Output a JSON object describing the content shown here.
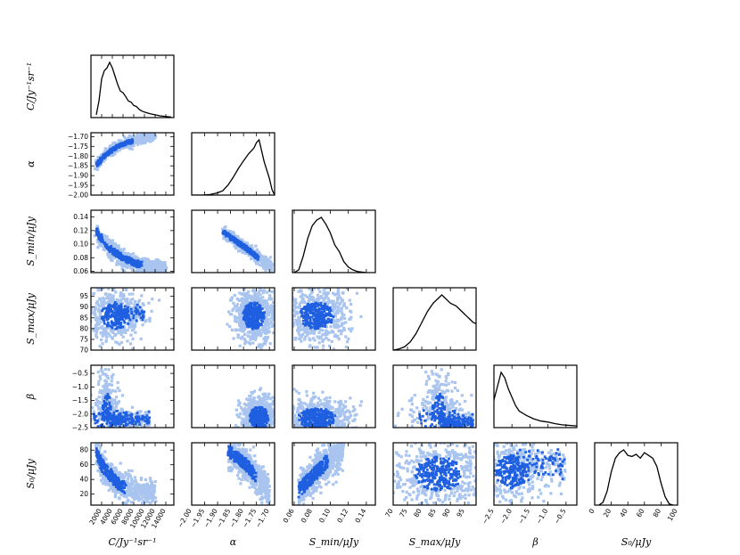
{
  "chart_data": {
    "type": "corner",
    "colors": {
      "inner": "#1f5fe0",
      "outer": "#a8c4ef",
      "line": "#000000",
      "frame": "#000000"
    },
    "params": [
      {
        "id": "C",
        "label": "C/Jy⁻¹sr⁻¹",
        "ylabel": "C/Jy⁻¹sr⁻¹",
        "range": [
          0,
          15500
        ],
        "ticks": [
          2000,
          4000,
          6000,
          8000,
          10000,
          12000,
          14000
        ],
        "tick_labels": [
          "2000",
          "4000",
          "6000",
          "8000",
          "10000",
          "12000",
          "14000"
        ]
      },
      {
        "id": "alpha",
        "label": "α",
        "ylabel": "α",
        "range": [
          -2.0,
          -1.68
        ],
        "ticks": [
          -2.0,
          -1.95,
          -1.9,
          -1.85,
          -1.8,
          -1.75,
          -1.7
        ],
        "tick_labels": [
          "−2.00",
          "−1.95",
          "−1.90",
          "−1.85",
          "−1.80",
          "−1.75",
          "−1.70"
        ]
      },
      {
        "id": "Smin",
        "label": "S_min/μJy",
        "ylabel": "S_min/μJy",
        "range": [
          0.058,
          0.15
        ],
        "ticks": [
          0.06,
          0.08,
          0.1,
          0.12,
          0.14
        ],
        "tick_labels": [
          "0.06",
          "0.08",
          "0.10",
          "0.12",
          "0.14"
        ]
      },
      {
        "id": "Smax",
        "label": "S_max/μJy",
        "ylabel": "S_max/μJy",
        "range": [
          70,
          99
        ],
        "ticks": [
          70,
          75,
          80,
          85,
          90,
          95
        ],
        "tick_labels": [
          "70",
          "75",
          "80",
          "85",
          "90",
          "95"
        ]
      },
      {
        "id": "beta",
        "label": "β",
        "ylabel": "β",
        "range": [
          -2.5,
          -0.2
        ],
        "ticks": [
          -2.5,
          -2.0,
          -1.5,
          -1.0,
          -0.5
        ],
        "tick_labels": [
          "−2.5",
          "−2.0",
          "−1.5",
          "−1.0",
          "−0.5"
        ]
      },
      {
        "id": "S0",
        "label": "S₀/μJy",
        "ylabel": "S₀/μJy",
        "range": [
          5,
          90
        ],
        "ticks": [
          0,
          20,
          40,
          60,
          80,
          100
        ],
        "tick_labels": [
          "0",
          "20",
          "40",
          "60",
          "80",
          "100"
        ],
        "xrange": [
          0,
          100
        ]
      }
    ],
    "histograms": {
      "C": [
        [
          1000,
          0.05
        ],
        [
          1500,
          0.3
        ],
        [
          2000,
          0.7
        ],
        [
          2500,
          0.85
        ],
        [
          3000,
          0.9
        ],
        [
          3500,
          1.0
        ],
        [
          4000,
          0.9
        ],
        [
          4500,
          0.75
        ],
        [
          5000,
          0.6
        ],
        [
          5500,
          0.48
        ],
        [
          6000,
          0.45
        ],
        [
          6500,
          0.38
        ],
        [
          7000,
          0.3
        ],
        [
          7500,
          0.28
        ],
        [
          8000,
          0.22
        ],
        [
          8500,
          0.2
        ],
        [
          9000,
          0.15
        ],
        [
          9500,
          0.12
        ],
        [
          10000,
          0.1
        ],
        [
          11000,
          0.07
        ],
        [
          12000,
          0.05
        ],
        [
          13000,
          0.03
        ],
        [
          14000,
          0.02
        ],
        [
          15000,
          0.01
        ]
      ],
      "alpha": [
        [
          -2.0,
          0.0
        ],
        [
          -1.96,
          0.0
        ],
        [
          -1.93,
          0.01
        ],
        [
          -1.9,
          0.04
        ],
        [
          -1.88,
          0.08
        ],
        [
          -1.86,
          0.18
        ],
        [
          -1.84,
          0.32
        ],
        [
          -1.82,
          0.48
        ],
        [
          -1.8,
          0.62
        ],
        [
          -1.78,
          0.75
        ],
        [
          -1.76,
          0.85
        ],
        [
          -1.75,
          0.95
        ],
        [
          -1.74,
          1.0
        ],
        [
          -1.73,
          0.8
        ],
        [
          -1.72,
          0.6
        ],
        [
          -1.71,
          0.45
        ],
        [
          -1.7,
          0.3
        ],
        [
          -1.69,
          0.1
        ],
        [
          -1.68,
          0.0
        ]
      ],
      "Smin": [
        [
          0.06,
          0.0
        ],
        [
          0.065,
          0.05
        ],
        [
          0.07,
          0.3
        ],
        [
          0.075,
          0.62
        ],
        [
          0.08,
          0.85
        ],
        [
          0.085,
          0.95
        ],
        [
          0.09,
          1.0
        ],
        [
          0.095,
          0.88
        ],
        [
          0.1,
          0.72
        ],
        [
          0.105,
          0.5
        ],
        [
          0.11,
          0.38
        ],
        [
          0.115,
          0.2
        ],
        [
          0.12,
          0.1
        ],
        [
          0.125,
          0.05
        ],
        [
          0.13,
          0.02
        ],
        [
          0.135,
          0.01
        ],
        [
          0.14,
          0.0
        ]
      ],
      "Smax": [
        [
          70,
          0.0
        ],
        [
          72,
          0.02
        ],
        [
          74,
          0.06
        ],
        [
          76,
          0.15
        ],
        [
          78,
          0.3
        ],
        [
          80,
          0.5
        ],
        [
          82,
          0.7
        ],
        [
          84,
          0.85
        ],
        [
          86,
          0.95
        ],
        [
          87,
          1.0
        ],
        [
          88,
          0.95
        ],
        [
          89,
          0.9
        ],
        [
          90,
          0.85
        ],
        [
          92,
          0.8
        ],
        [
          94,
          0.7
        ],
        [
          96,
          0.6
        ],
        [
          97,
          0.55
        ],
        [
          98,
          0.5
        ],
        [
          99,
          0.48
        ]
      ],
      "beta": [
        [
          -2.5,
          0.5
        ],
        [
          -2.4,
          0.75
        ],
        [
          -2.3,
          1.0
        ],
        [
          -2.2,
          0.9
        ],
        [
          -2.1,
          0.7
        ],
        [
          -2.0,
          0.55
        ],
        [
          -1.9,
          0.4
        ],
        [
          -1.8,
          0.3
        ],
        [
          -1.6,
          0.22
        ],
        [
          -1.4,
          0.16
        ],
        [
          -1.2,
          0.12
        ],
        [
          -1.0,
          0.1
        ],
        [
          -0.8,
          0.07
        ],
        [
          -0.6,
          0.05
        ],
        [
          -0.4,
          0.04
        ],
        [
          -0.2,
          0.03
        ]
      ],
      "S0": [
        [
          5,
          0.0
        ],
        [
          10,
          0.05
        ],
        [
          15,
          0.25
        ],
        [
          20,
          0.6
        ],
        [
          25,
          0.85
        ],
        [
          30,
          0.95
        ],
        [
          35,
          1.0
        ],
        [
          40,
          0.9
        ],
        [
          45,
          0.88
        ],
        [
          50,
          0.92
        ],
        [
          55,
          0.85
        ],
        [
          60,
          0.95
        ],
        [
          65,
          0.9
        ],
        [
          70,
          0.85
        ],
        [
          75,
          0.7
        ],
        [
          80,
          0.4
        ],
        [
          85,
          0.15
        ],
        [
          90,
          0.02
        ],
        [
          95,
          0.0
        ]
      ]
    },
    "scatter_shapes": {
      "alpha|C": {
        "kind": "curve",
        "xs": [
          1000,
          1800,
          2600,
          3400,
          4200,
          5000,
          6000,
          7000,
          8000,
          9000,
          10000,
          11000,
          12000
        ],
        "ys": [
          -1.85,
          -1.82,
          -1.795,
          -1.78,
          -1.765,
          -1.75,
          -1.738,
          -1.728,
          -1.72,
          -1.712,
          -1.706,
          -1.7,
          -1.696
        ],
        "spread": 0.012
      },
      "Smin|C": {
        "kind": "curve",
        "xs": [
          1000,
          2000,
          3000,
          4000,
          5000,
          6000,
          7000,
          8000,
          9000,
          10000,
          11000,
          12000,
          13000,
          14000
        ],
        "ys": [
          0.12,
          0.106,
          0.096,
          0.09,
          0.085,
          0.08,
          0.076,
          0.073,
          0.07,
          0.068,
          0.066,
          0.065,
          0.064,
          0.063
        ],
        "spread": 0.006
      },
      "Smin|alpha": {
        "kind": "curve",
        "xs": [
          -1.88,
          -1.84,
          -1.8,
          -1.77,
          -1.74,
          -1.71,
          -1.69
        ],
        "ys": [
          0.118,
          0.108,
          0.097,
          0.088,
          0.079,
          0.071,
          0.066
        ],
        "spread": 0.004
      },
      "Smax|C": {
        "kind": "blob",
        "cx": 4500,
        "cy": 86,
        "sx": 2500,
        "sy": 6,
        "tail": [
          10000,
          88
        ]
      },
      "Smax|alpha": {
        "kind": "blob",
        "cx": -1.76,
        "cy": 86,
        "sx": 0.04,
        "sy": 6
      },
      "Smax|Smin": {
        "kind": "blob",
        "cx": 0.085,
        "cy": 86,
        "sx": 0.018,
        "sy": 6
      },
      "beta|C": {
        "kind": "lshape",
        "cx": 3000,
        "cy": -2.2,
        "sx": 2500,
        "sy": 0.5,
        "tail": [
          11000,
          -2.2
        ]
      },
      "beta|alpha": {
        "kind": "blob",
        "cx": -1.74,
        "cy": -2.15,
        "sx": 0.035,
        "sy": 0.4
      },
      "beta|Smin": {
        "kind": "blob",
        "cx": 0.085,
        "cy": -2.15,
        "sx": 0.02,
        "sy": 0.35
      },
      "beta|Smax": {
        "kind": "lshape",
        "cx": 86,
        "cy": -2.2,
        "sx": 7,
        "sy": 0.5,
        "tail": [
          98,
          -2.3
        ]
      },
      "S0|C": {
        "kind": "curve",
        "xs": [
          1000,
          2000,
          3000,
          4000,
          5000,
          6000,
          8000,
          10000,
          12000
        ],
        "ys": [
          75,
          62,
          50,
          42,
          35,
          30,
          25,
          21,
          18
        ],
        "spread": 10
      },
      "S0|alpha": {
        "kind": "curve",
        "xs": [
          -1.86,
          -1.82,
          -1.79,
          -1.76,
          -1.73,
          -1.7
        ],
        "ys": [
          78,
          70,
          60,
          48,
          35,
          22
        ],
        "spread": 10
      },
      "S0|Smin": {
        "kind": "curve",
        "xs": [
          0.065,
          0.075,
          0.085,
          0.095,
          0.105,
          0.115
        ],
        "ys": [
          25,
          38,
          50,
          62,
          72,
          80
        ],
        "spread": 12
      },
      "S0|Smax": {
        "kind": "blob",
        "cx": 86,
        "cy": 48,
        "sx": 8,
        "sy": 22
      },
      "S0|beta": {
        "kind": "blob",
        "cx": -2.0,
        "cy": 50,
        "sx": 0.45,
        "sy": 22,
        "tail": [
          -0.5,
          72
        ]
      }
    }
  }
}
